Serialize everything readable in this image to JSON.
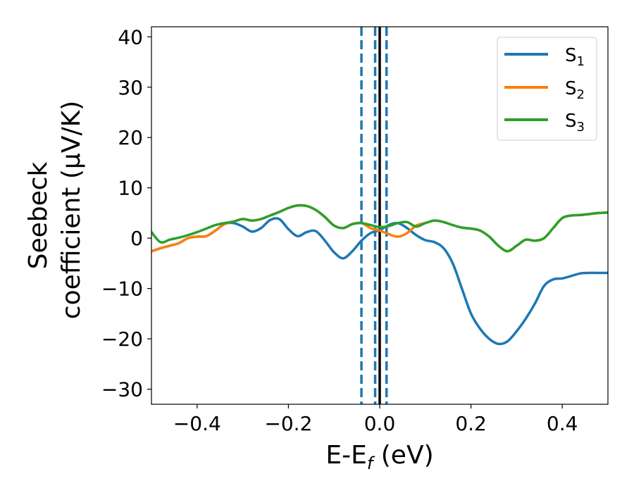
{
  "chart_data": {
    "type": "line",
    "xlabel": "E-E",
    "xlabel_sub": "f",
    "xlabel_suffix": " (eV)",
    "ylabel_line1": "Seebeck",
    "ylabel_line2": "coefficient  (μV/K)",
    "xlim": [
      -0.5,
      0.5
    ],
    "ylim": [
      -33,
      42
    ],
    "xticks": [
      -0.4,
      -0.2,
      0.0,
      0.2,
      0.4
    ],
    "xtick_labels": [
      "−0.4",
      "−0.2",
      "0.0",
      "0.2",
      "0.4"
    ],
    "yticks": [
      -30,
      -20,
      -10,
      0,
      10,
      20,
      30,
      40
    ],
    "ytick_labels": [
      "−30",
      "−20",
      "−10",
      "0",
      "10",
      "20",
      "30",
      "40"
    ],
    "grid": false,
    "legend_position": "top-right",
    "vlines": [
      {
        "x": 0.0,
        "style": "solid",
        "color": "#000000"
      },
      {
        "x": -0.04,
        "style": "dashed",
        "color": "#1f77b4"
      },
      {
        "x": -0.01,
        "style": "dashed",
        "color": "#1f77b4"
      },
      {
        "x": 0.015,
        "style": "dashed",
        "color": "#1f77b4"
      }
    ],
    "series": [
      {
        "name": "S",
        "sub": "1",
        "color": "#1f77b4",
        "x": [
          -0.5,
          -0.48,
          -0.46,
          -0.44,
          -0.42,
          -0.4,
          -0.38,
          -0.36,
          -0.34,
          -0.32,
          -0.3,
          -0.28,
          -0.26,
          -0.24,
          -0.22,
          -0.2,
          -0.18,
          -0.16,
          -0.14,
          -0.12,
          -0.1,
          -0.08,
          -0.06,
          -0.04,
          -0.02,
          0.0,
          0.02,
          0.04,
          0.06,
          0.08,
          0.1,
          0.12,
          0.14,
          0.16,
          0.18,
          0.2,
          0.22,
          0.24,
          0.26,
          0.28,
          0.3,
          0.32,
          0.34,
          0.36,
          0.38,
          0.4,
          0.42,
          0.44,
          0.46,
          0.48,
          0.5
        ],
        "y": [
          -2.6,
          -2.0,
          -1.5,
          -1.0,
          0.0,
          0.3,
          0.4,
          1.5,
          2.8,
          3.0,
          2.3,
          1.3,
          2.0,
          3.6,
          3.8,
          1.8,
          0.4,
          1.2,
          1.4,
          -0.5,
          -2.8,
          -4.0,
          -2.6,
          -0.5,
          1.0,
          1.6,
          2.6,
          3.0,
          2.0,
          0.6,
          -0.4,
          -0.8,
          -2.0,
          -5.0,
          -10.0,
          -15.0,
          -18.0,
          -20.0,
          -21.0,
          -20.5,
          -18.5,
          -16.0,
          -13.0,
          -9.5,
          -8.2,
          -8.0,
          -7.5,
          -7.0,
          -6.9,
          -6.9,
          -6.9
        ]
      },
      {
        "name": "S",
        "sub": "2",
        "color": "#ff7f0e",
        "x": [
          -0.5,
          -0.48,
          -0.46,
          -0.44,
          -0.42,
          -0.4,
          -0.38,
          -0.36,
          -0.34,
          -0.32,
          -0.3,
          -0.28,
          -0.26,
          -0.24,
          -0.22,
          -0.2,
          -0.18,
          -0.16,
          -0.14,
          -0.12,
          -0.1,
          -0.08,
          -0.06,
          -0.04,
          -0.02,
          0.0,
          0.02,
          0.04,
          0.06,
          0.08,
          0.1,
          0.12,
          0.14,
          0.16,
          0.18,
          0.2,
          0.22,
          0.24,
          0.26,
          0.28,
          0.3,
          0.32,
          0.34,
          0.36,
          0.38,
          0.4,
          0.42,
          0.44,
          0.46,
          0.48,
          0.5
        ],
        "y": [
          -2.6,
          -2.0,
          -1.5,
          -1.0,
          0.0,
          0.3,
          0.4,
          1.5,
          2.8,
          3.3,
          3.8,
          3.5,
          3.8,
          4.5,
          5.2,
          6.0,
          6.5,
          6.4,
          5.6,
          4.2,
          2.5,
          2.0,
          2.8,
          3.0,
          2.0,
          1.5,
          0.8,
          0.3,
          1.0,
          2.5,
          3.0,
          3.5,
          3.2,
          2.6,
          2.1,
          1.9,
          1.5,
          0.3,
          -1.5,
          -2.6,
          -1.5,
          -0.3,
          -0.5,
          0.0,
          2.0,
          4.0,
          4.5,
          4.6,
          4.8,
          5.0,
          5.1
        ]
      },
      {
        "name": "S",
        "sub": "3",
        "color": "#2ca02c",
        "x": [
          -0.5,
          -0.48,
          -0.46,
          -0.44,
          -0.42,
          -0.4,
          -0.38,
          -0.36,
          -0.34,
          -0.32,
          -0.3,
          -0.28,
          -0.26,
          -0.24,
          -0.22,
          -0.2,
          -0.18,
          -0.16,
          -0.14,
          -0.12,
          -0.1,
          -0.08,
          -0.06,
          -0.04,
          -0.02,
          0.0,
          0.02,
          0.04,
          0.06,
          0.08,
          0.1,
          0.12,
          0.14,
          0.16,
          0.18,
          0.2,
          0.22,
          0.24,
          0.26,
          0.28,
          0.3,
          0.32,
          0.34,
          0.36,
          0.38,
          0.4,
          0.42,
          0.44,
          0.46,
          0.48,
          0.5
        ],
        "y": [
          1.2,
          -0.8,
          -0.3,
          0.1,
          0.6,
          1.2,
          1.9,
          2.6,
          3.0,
          3.3,
          3.8,
          3.5,
          3.8,
          4.5,
          5.2,
          6.0,
          6.5,
          6.4,
          5.6,
          4.2,
          2.5,
          2.0,
          2.8,
          3.0,
          2.6,
          2.2,
          2.4,
          3.0,
          3.2,
          2.3,
          3.0,
          3.5,
          3.2,
          2.6,
          2.1,
          1.9,
          1.5,
          0.3,
          -1.5,
          -2.6,
          -1.5,
          -0.3,
          -0.5,
          0.0,
          2.0,
          4.0,
          4.5,
          4.6,
          4.8,
          5.0,
          5.1
        ]
      }
    ]
  }
}
